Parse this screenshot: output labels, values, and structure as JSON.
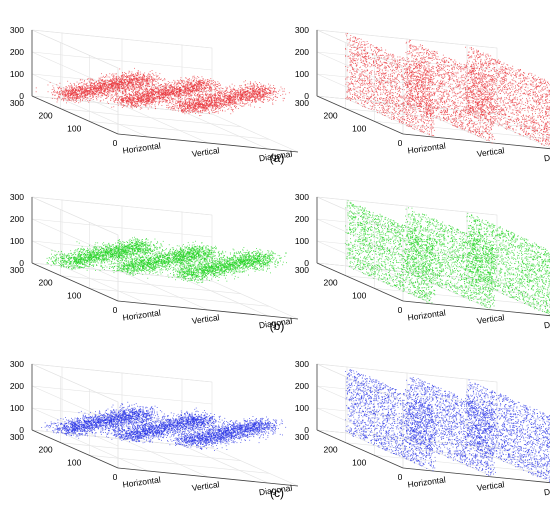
{
  "panel_labels": [
    "(a)",
    "(b)",
    "(c)"
  ],
  "colors": {
    "red": "#e8373c",
    "green": "#22d322",
    "blue": "#2b35e6"
  },
  "chart_data": [
    {
      "type": "scatter",
      "row": 0,
      "variant": "correlated",
      "color": "#e8373c",
      "categories": [
        "Horizontal",
        "Vertical",
        "Diagonal"
      ],
      "zticks": [
        "0",
        "100",
        "200",
        "300"
      ],
      "yticks": [
        "0",
        "100",
        "200",
        "300"
      ],
      "zlim": [
        0,
        300
      ],
      "ylim": [
        0,
        300
      ]
    },
    {
      "type": "scatter",
      "row": 0,
      "variant": "uniform",
      "color": "#e8373c",
      "categories": [
        "Horizontal",
        "Vertical",
        "Diagonal"
      ],
      "zticks": [
        "0",
        "100",
        "200",
        "300"
      ],
      "yticks": [
        "0",
        "100",
        "200",
        "300"
      ],
      "zlim": [
        0,
        300
      ],
      "ylim": [
        0,
        300
      ]
    },
    {
      "type": "scatter",
      "row": 1,
      "variant": "correlated",
      "color": "#22d322",
      "categories": [
        "Horizontal",
        "Vertical",
        "Diagonal"
      ],
      "zticks": [
        "0",
        "100",
        "200",
        "300"
      ],
      "yticks": [
        "0",
        "100",
        "200",
        "300"
      ],
      "zlim": [
        0,
        300
      ],
      "ylim": [
        0,
        300
      ]
    },
    {
      "type": "scatter",
      "row": 1,
      "variant": "uniform",
      "color": "#22d322",
      "categories": [
        "Horizontal",
        "Vertical",
        "Diagonal"
      ],
      "zticks": [
        "0",
        "100",
        "200",
        "300"
      ],
      "yticks": [
        "0",
        "100",
        "200",
        "300"
      ],
      "zlim": [
        0,
        300
      ],
      "ylim": [
        0,
        300
      ]
    },
    {
      "type": "scatter",
      "row": 2,
      "variant": "correlated",
      "color": "#2b35e6",
      "categories": [
        "Horizontal",
        "Vertical",
        "Diagonal"
      ],
      "zticks": [
        "0",
        "100",
        "200",
        "300"
      ],
      "yticks": [
        "0",
        "100",
        "200",
        "300"
      ],
      "zlim": [
        0,
        300
      ],
      "ylim": [
        0,
        300
      ]
    },
    {
      "type": "scatter",
      "row": 2,
      "variant": "uniform",
      "color": "#2b35e6",
      "categories": [
        "Horizontal",
        "Vertical",
        "Diagonal"
      ],
      "zticks": [
        "0",
        "100",
        "200",
        "300"
      ],
      "yticks": [
        "0",
        "100",
        "200",
        "300"
      ],
      "zlim": [
        0,
        300
      ],
      "ylim": [
        0,
        300
      ]
    }
  ]
}
